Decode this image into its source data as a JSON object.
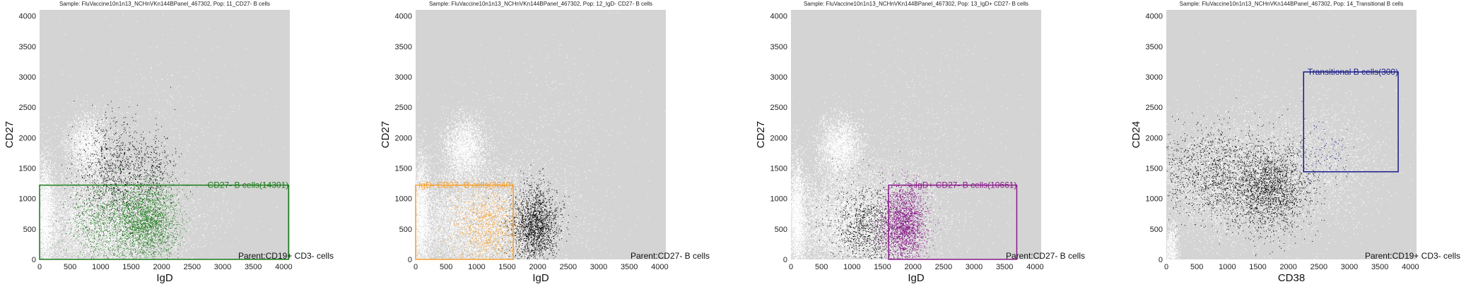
{
  "chart_data": [
    {
      "type": "scatter",
      "title": "Sample: FluVaccine10n1n13_NCHnVKn144BPanel_467302, Pop: 11_CD27- B cells",
      "xlabel": "IgD",
      "ylabel": "CD27",
      "xlim": [
        0,
        4100
      ],
      "ylim": [
        0,
        4100
      ],
      "xticks": [
        0,
        500,
        1000,
        1500,
        2000,
        2500,
        3000,
        3500,
        4000
      ],
      "yticks": [
        0,
        500,
        1000,
        1500,
        2000,
        2500,
        3000,
        3500,
        4000
      ],
      "plot_background": "#d4d4d4",
      "background_population_color": "#ffffff",
      "parent_label": "Parent:CD19+ CD3- cells",
      "gate": {
        "x": [
          0,
          4080
        ],
        "y": [
          0,
          1220
        ],
        "label": "CD27- B cells(14301)",
        "color": "#1a7a1a"
      },
      "series": [
        {
          "color": "#000000",
          "clusters": [
            {
              "cx": 1200,
              "cy": 1400,
              "sx": 300,
              "sy": 450,
              "n": 1000
            },
            {
              "cx": 1850,
              "cy": 1500,
              "sx": 200,
              "sy": 300,
              "n": 300
            }
          ]
        },
        {
          "color": "#1a7a1a",
          "clusters": [
            {
              "cx": 1750,
              "cy": 600,
              "sx": 250,
              "sy": 330,
              "n": 2200
            },
            {
              "cx": 1050,
              "cy": 600,
              "sx": 280,
              "sy": 320,
              "n": 800
            }
          ]
        }
      ]
    },
    {
      "type": "scatter",
      "title": "Sample: FluVaccine10n1n13_NCHnVKn144BPanel_467302, Pop: 12_IgD- CD27- B cells",
      "xlabel": "IgD",
      "ylabel": "CD27",
      "xlim": [
        0,
        4100
      ],
      "ylim": [
        0,
        4100
      ],
      "xticks": [
        0,
        500,
        1000,
        1500,
        2000,
        2500,
        3000,
        3500,
        4000
      ],
      "yticks": [
        0,
        500,
        1000,
        1500,
        2000,
        2500,
        3000,
        3500,
        4000
      ],
      "plot_background": "#d4d4d4",
      "background_population_color": "#ffffff",
      "parent_label": "Parent:CD27- B cells",
      "gate": {
        "x": [
          0,
          1600
        ],
        "y": [
          0,
          1220
        ],
        "label": "IgD- CD27- B cells(3640)",
        "color": "#f5a030"
      },
      "series": [
        {
          "color": "#000000",
          "clusters": [
            {
              "cx": 1950,
              "cy": 550,
              "sx": 200,
              "sy": 320,
              "n": 1800
            }
          ]
        },
        {
          "color": "#f5a030",
          "clusters": [
            {
              "cx": 1150,
              "cy": 550,
              "sx": 270,
              "sy": 320,
              "n": 1100
            }
          ]
        }
      ]
    },
    {
      "type": "scatter",
      "title": "Sample: FluVaccine10n1n13_NCHnVKn144BPanel_467302, Pop: 13_IgD+ CD27- B cells",
      "xlabel": "IgD",
      "ylabel": "CD27",
      "xlim": [
        0,
        4100
      ],
      "ylim": [
        0,
        4100
      ],
      "xticks": [
        0,
        500,
        1000,
        1500,
        2000,
        2500,
        3000,
        3500,
        4000
      ],
      "yticks": [
        0,
        500,
        1000,
        1500,
        2000,
        2500,
        3000,
        3500,
        4000
      ],
      "plot_background": "#d4d4d4",
      "background_population_color": "#ffffff",
      "parent_label": "Parent:CD27- B cells",
      "gate": {
        "x": [
          1600,
          3700
        ],
        "y": [
          0,
          1220
        ],
        "label": "IgD+ CD27- B cells(10661)",
        "color": "#8a1a8a"
      },
      "series": [
        {
          "color": "#000000",
          "clusters": [
            {
              "cx": 1250,
              "cy": 550,
              "sx": 280,
              "sy": 320,
              "n": 1000
            }
          ]
        },
        {
          "color": "#8a1a8a",
          "clusters": [
            {
              "cx": 1850,
              "cy": 600,
              "sx": 180,
              "sy": 320,
              "n": 2200
            }
          ]
        }
      ]
    },
    {
      "type": "scatter",
      "title": "Sample: FluVaccine10n1n13_NCHnVKn144BPanel_467302, Pop: 14_Transitional B cells",
      "xlabel": "CD38",
      "ylabel": "CD24",
      "xlim": [
        0,
        4100
      ],
      "ylim": [
        0,
        4100
      ],
      "xticks": [
        0,
        500,
        1000,
        1500,
        2000,
        2500,
        3000,
        3500,
        4000
      ],
      "yticks": [
        0,
        500,
        1000,
        1500,
        2000,
        2500,
        3000,
        3500,
        4000
      ],
      "plot_background": "#d4d4d4",
      "background_population_color": "#ffffff",
      "parent_label": "Parent:CD19+ CD3- cells",
      "gate": {
        "x": [
          2250,
          3800
        ],
        "y": [
          1440,
          3080
        ],
        "label": "Transitional B cells(300)",
        "color": "#1a1a8a"
      },
      "series": [
        {
          "color": "#000000",
          "clusters": [
            {
              "cx": 800,
              "cy": 1400,
              "sx": 550,
              "sy": 380,
              "n": 1400
            },
            {
              "cx": 1700,
              "cy": 1150,
              "sx": 330,
              "sy": 340,
              "n": 1800
            }
          ]
        },
        {
          "color": "#1a1a8a",
          "clusters": [
            {
              "cx": 2550,
              "cy": 1750,
              "sx": 250,
              "sy": 250,
              "n": 120
            }
          ]
        }
      ]
    }
  ]
}
